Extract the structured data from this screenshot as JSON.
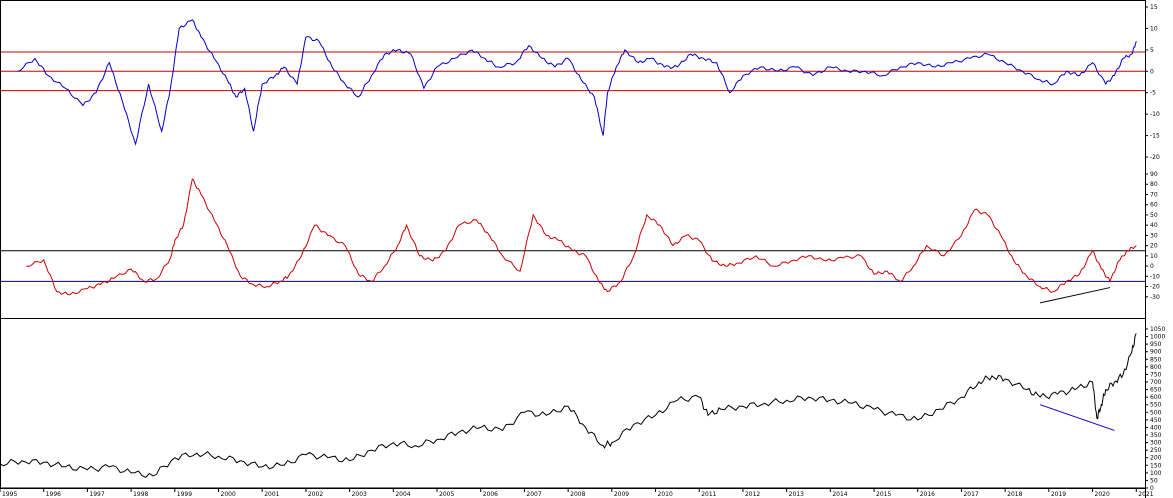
{
  "chart_data": [
    {
      "type": "line",
      "panel": "top-oscillator",
      "series": [
        {
          "color": "#0000cc",
          "x": [
            1995.4,
            1995.8,
            1996.1,
            1996.5,
            1996.9,
            1997.2,
            1997.5,
            1997.8,
            1998.1,
            1998.4,
            1998.7,
            1998.9,
            1999.1,
            1999.4,
            1999.6,
            1999.9,
            2000.2,
            2000.4,
            2000.6,
            2000.8,
            2001.0,
            2001.3,
            2001.5,
            2001.8,
            2002.0,
            2002.3,
            2002.6,
            2002.9,
            2003.2,
            2003.5,
            2003.8,
            2004.1,
            2004.4,
            2004.7,
            2005.0,
            2005.4,
            2005.8,
            2006.1,
            2006.4,
            2006.8,
            2007.1,
            2007.4,
            2007.7,
            2008.0,
            2008.3,
            2008.6,
            2008.8,
            2008.9,
            2009.1,
            2009.3,
            2009.6,
            2009.9,
            2010.2,
            2010.5,
            2010.8,
            2011.1,
            2011.4,
            2011.7,
            2012.0,
            2012.4,
            2012.8,
            2013.2,
            2013.6,
            2014.0,
            2014.4,
            2014.8,
            2015.2,
            2015.6,
            2016.0,
            2016.4,
            2016.8,
            2017.2,
            2017.6,
            2018.0,
            2018.4,
            2018.8,
            2019.1,
            2019.4,
            2019.7,
            2020.0,
            2020.3,
            2020.5,
            2020.7,
            2020.9,
            2021.0
          ],
          "y": [
            0,
            3,
            -1,
            -4,
            -8,
            -5,
            2,
            -7,
            -17,
            -3,
            -14,
            -4,
            10,
            12,
            8,
            3,
            -2,
            -6,
            -4,
            -14,
            -3,
            -1,
            1,
            -3,
            8,
            7,
            1,
            -3,
            -6,
            -1,
            4,
            5,
            4,
            -4,
            1,
            3,
            5,
            3,
            1,
            2,
            6,
            3,
            1,
            3,
            -2,
            -6,
            -15,
            -5,
            1,
            5,
            2,
            3,
            1,
            1,
            4,
            3,
            2,
            -5,
            -1,
            1,
            0,
            1,
            -1,
            1,
            0,
            0,
            -1,
            1,
            2,
            1,
            2,
            3,
            4,
            2,
            0,
            -2,
            -3,
            0,
            -1,
            2,
            -3,
            -1,
            3,
            4,
            7
          ]
        }
      ],
      "reference_lines": [
        4.5,
        0,
        -4.5
      ],
      "ylim": [
        -20,
        15
      ],
      "yticks": [
        "15",
        "10",
        "5",
        "0",
        "-5",
        "-10",
        "-15",
        "-20"
      ]
    },
    {
      "type": "line",
      "panel": "middle-oscillator",
      "series": [
        {
          "color": "#cc0000",
          "x": [
            1995.6,
            1996.0,
            1996.3,
            1996.6,
            1997.0,
            1997.3,
            1997.6,
            1998.0,
            1998.3,
            1998.6,
            1998.9,
            1999.0,
            1999.2,
            1999.4,
            1999.6,
            1999.9,
            2000.2,
            2000.5,
            2000.8,
            2001.1,
            2001.4,
            2001.6,
            2001.9,
            2002.2,
            2002.5,
            2002.9,
            2003.2,
            2003.5,
            2003.8,
            2004.1,
            2004.3,
            2004.6,
            2004.9,
            2005.2,
            2005.5,
            2005.9,
            2006.2,
            2006.5,
            2006.9,
            2007.2,
            2007.5,
            2007.8,
            2008.1,
            2008.4,
            2008.7,
            2008.9,
            2009.2,
            2009.5,
            2009.8,
            2010.1,
            2010.4,
            2010.7,
            2011.0,
            2011.3,
            2011.6,
            2011.9,
            2012.3,
            2012.7,
            2013.1,
            2013.5,
            2013.9,
            2014.3,
            2014.7,
            2015.0,
            2015.3,
            2015.6,
            2015.9,
            2016.2,
            2016.6,
            2017.0,
            2017.3,
            2017.6,
            2017.9,
            2018.2,
            2018.5,
            2018.8,
            2019.1,
            2019.4,
            2019.7,
            2020.0,
            2020.2,
            2020.4,
            2020.6,
            2020.8,
            2021.0
          ],
          "y": [
            0,
            6,
            -25,
            -28,
            -22,
            -18,
            -12,
            -3,
            -15,
            -12,
            8,
            25,
            40,
            85,
            70,
            45,
            20,
            -10,
            -18,
            -20,
            -15,
            -10,
            10,
            40,
            30,
            20,
            -8,
            -15,
            0,
            20,
            40,
            10,
            5,
            15,
            40,
            45,
            30,
            10,
            -5,
            50,
            30,
            25,
            15,
            10,
            -15,
            -25,
            -15,
            10,
            50,
            40,
            20,
            30,
            25,
            5,
            0,
            3,
            10,
            0,
            5,
            10,
            5,
            8,
            10,
            -8,
            -5,
            -15,
            0,
            20,
            10,
            30,
            55,
            50,
            30,
            5,
            -10,
            -20,
            -25,
            -15,
            -8,
            15,
            -3,
            -15,
            5,
            15,
            20
          ]
        }
      ],
      "reference_lines": [
        15,
        -15
      ],
      "ylim": [
        -40,
        90
      ],
      "yticks": [
        "90",
        "80",
        "70",
        "60",
        "50",
        "40",
        "30",
        "20",
        "10",
        "0",
        "-10",
        "-20",
        "-30"
      ],
      "trendline": {
        "x": [
          2018.8,
          2020.4
        ],
        "y": [
          -36,
          -21
        ]
      }
    },
    {
      "type": "line",
      "panel": "price",
      "series": [
        {
          "color": "#000000",
          "x": [
            1995.0,
            1995.5,
            1996.0,
            1996.5,
            1997.0,
            1997.5,
            1998.0,
            1998.5,
            1999.0,
            1999.5,
            2000.0,
            2000.5,
            2001.0,
            2001.5,
            2002.0,
            2002.5,
            2003.0,
            2003.5,
            2004.0,
            2004.5,
            2005.0,
            2005.5,
            2006.0,
            2006.5,
            2007.0,
            2007.5,
            2008.0,
            2008.4,
            2008.8,
            2009.0,
            2009.5,
            2010.0,
            2010.5,
            2011.0,
            2011.2,
            2011.5,
            2012.0,
            2012.5,
            2013.0,
            2013.5,
            2014.0,
            2014.5,
            2015.0,
            2015.5,
            2016.0,
            2016.5,
            2017.0,
            2017.4,
            2017.7,
            2018.0,
            2018.5,
            2018.8,
            2019.2,
            2019.6,
            2020.0,
            2020.1,
            2020.2,
            2020.3,
            2020.5,
            2020.7,
            2020.9,
            2021.0
          ],
          "y": [
            160,
            180,
            170,
            140,
            120,
            140,
            100,
            80,
            200,
            230,
            210,
            180,
            140,
            150,
            220,
            200,
            180,
            250,
            300,
            280,
            320,
            370,
            400,
            380,
            500,
            480,
            540,
            400,
            280,
            300,
            420,
            480,
            580,
            600,
            480,
            520,
            540,
            560,
            580,
            600,
            580,
            560,
            520,
            480,
            450,
            520,
            600,
            700,
            740,
            720,
            650,
            600,
            620,
            650,
            700,
            460,
            550,
            650,
            700,
            750,
            900,
            1020
          ]
        }
      ],
      "ylim": [
        0,
        1050
      ],
      "yticks": [
        "1050",
        "1000",
        "950",
        "900",
        "850",
        "800",
        "750",
        "700",
        "650",
        "600",
        "550",
        "500",
        "450",
        "400",
        "350",
        "300",
        "250",
        "200",
        "150",
        "100",
        "50",
        "0"
      ],
      "trendline": {
        "x": [
          2018.8,
          2020.5
        ],
        "y": [
          550,
          380
        ]
      }
    }
  ],
  "x_axis": {
    "range": [
      1995,
      2021.2
    ],
    "year_labels": [
      "1995",
      "1996",
      "1997",
      "1998",
      "1999",
      "2000",
      "2001",
      "2002",
      "2003",
      "2004",
      "2005",
      "2006",
      "2007",
      "2008",
      "2009",
      "2010",
      "2011",
      "2012",
      "2013",
      "2014",
      "2015",
      "2016",
      "2017",
      "2018",
      "2019",
      "2020",
      "2021"
    ]
  },
  "colors": {
    "oscillator1": "#0000cc",
    "oscillator2": "#cc0000",
    "price": "#000000",
    "reference1": "#cc0000",
    "reference2": "#000080",
    "trend_osc": "#000000",
    "trend_price": "#0000cc"
  }
}
